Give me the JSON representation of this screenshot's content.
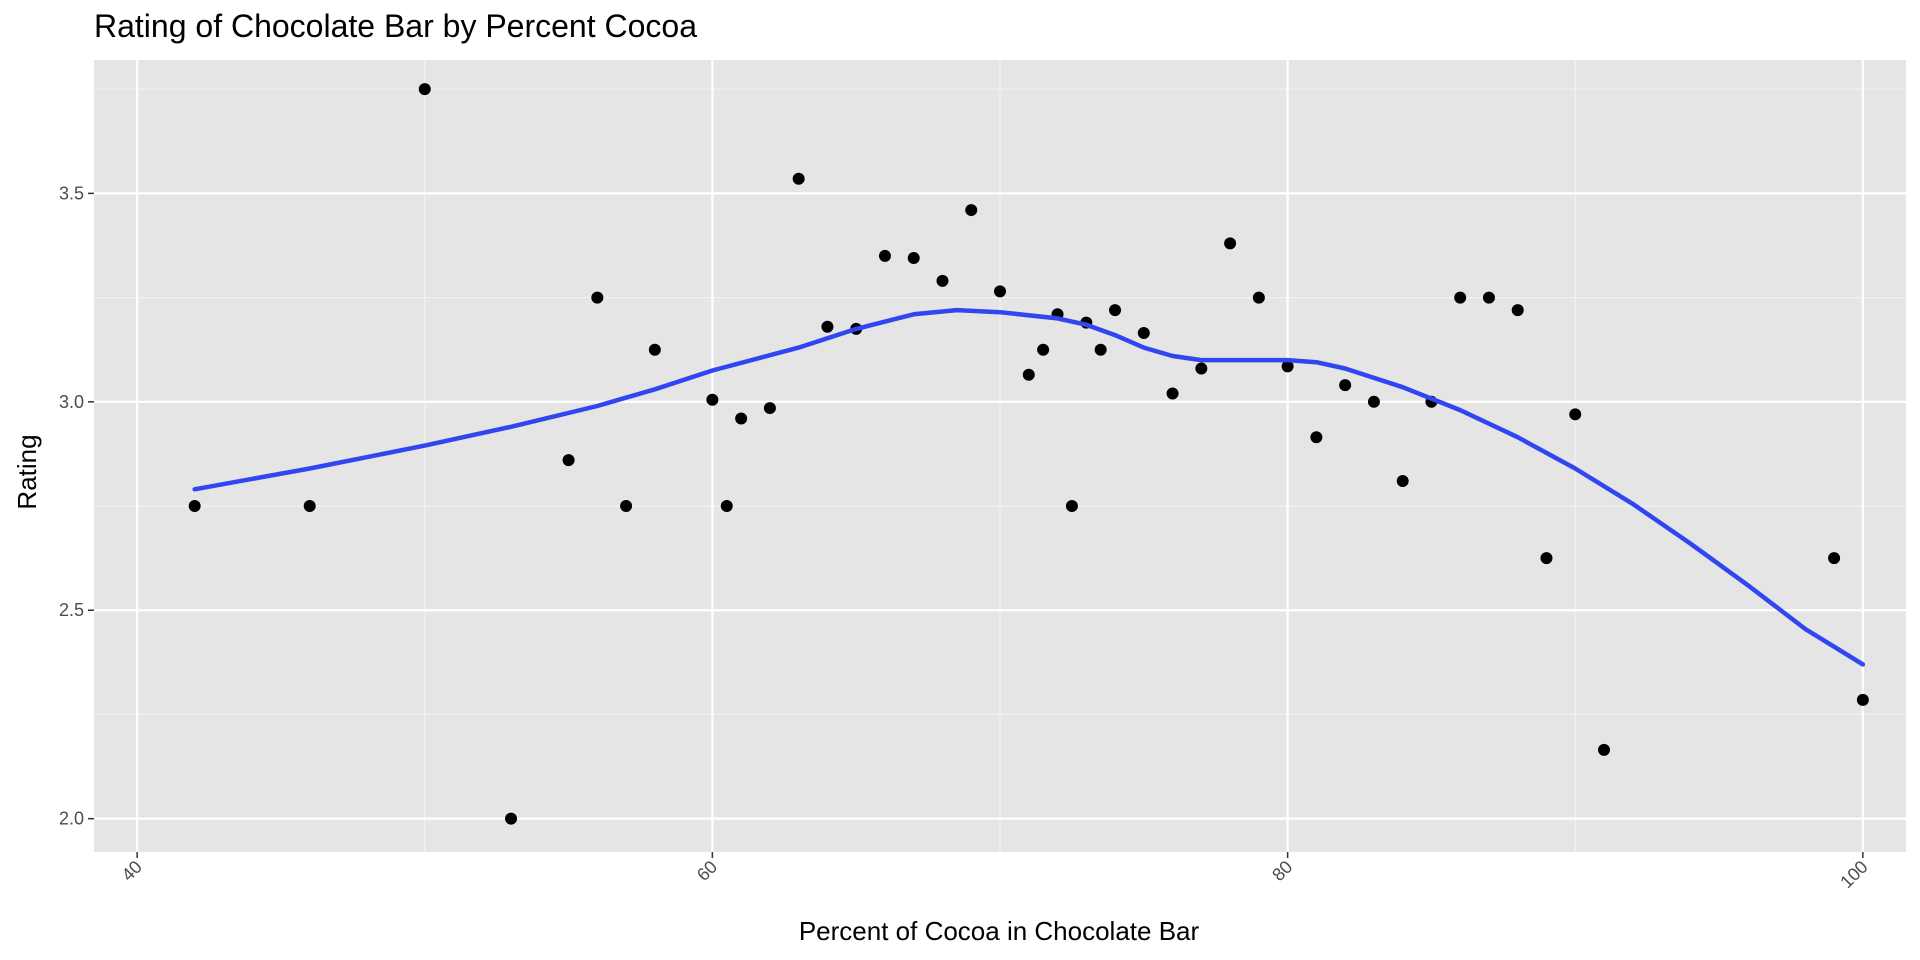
{
  "chart_data": {
    "type": "scatter",
    "title": "Rating of Chocolate Bar by Percent Cocoa",
    "xlabel": "Percent of Cocoa in Chocolate Bar",
    "ylabel": "Rating",
    "xlim": [
      38.5,
      101.5
    ],
    "ylim": [
      1.92,
      3.82
    ],
    "x_ticks": [
      40,
      60,
      80,
      100
    ],
    "x_tick_labels": [
      "40",
      "60",
      "80",
      "100"
    ],
    "y_ticks": [
      2.0,
      2.5,
      3.0,
      3.5
    ],
    "y_tick_labels": [
      "2.0",
      "2.5",
      "3.0",
      "3.5"
    ],
    "grid": true,
    "background": "#e5e5e5",
    "point_color": "#000000",
    "line_color": "#3046f0",
    "points": [
      {
        "x": 42,
        "y": 2.75
      },
      {
        "x": 46,
        "y": 2.75
      },
      {
        "x": 50,
        "y": 3.75
      },
      {
        "x": 53,
        "y": 2.0
      },
      {
        "x": 55,
        "y": 2.86
      },
      {
        "x": 56,
        "y": 3.25
      },
      {
        "x": 57,
        "y": 2.75
      },
      {
        "x": 58,
        "y": 3.125
      },
      {
        "x": 60,
        "y": 3.005
      },
      {
        "x": 60.5,
        "y": 2.75
      },
      {
        "x": 61,
        "y": 2.96
      },
      {
        "x": 62,
        "y": 2.985
      },
      {
        "x": 63,
        "y": 3.535
      },
      {
        "x": 64,
        "y": 3.18
      },
      {
        "x": 65,
        "y": 3.175
      },
      {
        "x": 66,
        "y": 3.35
      },
      {
        "x": 67,
        "y": 3.345
      },
      {
        "x": 68,
        "y": 3.29
      },
      {
        "x": 69,
        "y": 3.46
      },
      {
        "x": 70,
        "y": 3.265
      },
      {
        "x": 71,
        "y": 3.065
      },
      {
        "x": 71.5,
        "y": 3.125
      },
      {
        "x": 72,
        "y": 3.21
      },
      {
        "x": 72.5,
        "y": 2.75
      },
      {
        "x": 73,
        "y": 3.19
      },
      {
        "x": 73.5,
        "y": 3.125
      },
      {
        "x": 74,
        "y": 3.22
      },
      {
        "x": 75,
        "y": 3.165
      },
      {
        "x": 76,
        "y": 3.02
      },
      {
        "x": 77,
        "y": 3.08
      },
      {
        "x": 78,
        "y": 3.38
      },
      {
        "x": 79,
        "y": 3.25
      },
      {
        "x": 80,
        "y": 3.085
      },
      {
        "x": 81,
        "y": 2.915
      },
      {
        "x": 82,
        "y": 3.04
      },
      {
        "x": 83,
        "y": 3.0
      },
      {
        "x": 84,
        "y": 2.81
      },
      {
        "x": 85,
        "y": 3.0
      },
      {
        "x": 86,
        "y": 3.25
      },
      {
        "x": 87,
        "y": 3.25
      },
      {
        "x": 88,
        "y": 3.22
      },
      {
        "x": 89,
        "y": 2.625
      },
      {
        "x": 90,
        "y": 2.97
      },
      {
        "x": 91,
        "y": 2.165
      },
      {
        "x": 99,
        "y": 2.625
      },
      {
        "x": 100,
        "y": 2.285
      }
    ],
    "smooth_line": [
      {
        "x": 42,
        "y": 2.79
      },
      {
        "x": 46,
        "y": 2.84
      },
      {
        "x": 50,
        "y": 2.895
      },
      {
        "x": 53,
        "y": 2.94
      },
      {
        "x": 56,
        "y": 2.99
      },
      {
        "x": 58,
        "y": 3.03
      },
      {
        "x": 60,
        "y": 3.075
      },
      {
        "x": 63,
        "y": 3.13
      },
      {
        "x": 65,
        "y": 3.175
      },
      {
        "x": 67,
        "y": 3.21
      },
      {
        "x": 68.5,
        "y": 3.22
      },
      {
        "x": 70,
        "y": 3.215
      },
      {
        "x": 72,
        "y": 3.2
      },
      {
        "x": 73,
        "y": 3.185
      },
      {
        "x": 74,
        "y": 3.16
      },
      {
        "x": 75,
        "y": 3.13
      },
      {
        "x": 76,
        "y": 3.11
      },
      {
        "x": 77,
        "y": 3.1
      },
      {
        "x": 80,
        "y": 3.1
      },
      {
        "x": 81,
        "y": 3.095
      },
      {
        "x": 82,
        "y": 3.08
      },
      {
        "x": 84,
        "y": 3.035
      },
      {
        "x": 86,
        "y": 2.98
      },
      {
        "x": 88,
        "y": 2.915
      },
      {
        "x": 90,
        "y": 2.84
      },
      {
        "x": 92,
        "y": 2.755
      },
      {
        "x": 94,
        "y": 2.66
      },
      {
        "x": 96,
        "y": 2.56
      },
      {
        "x": 98,
        "y": 2.455
      },
      {
        "x": 100,
        "y": 2.37
      }
    ]
  }
}
